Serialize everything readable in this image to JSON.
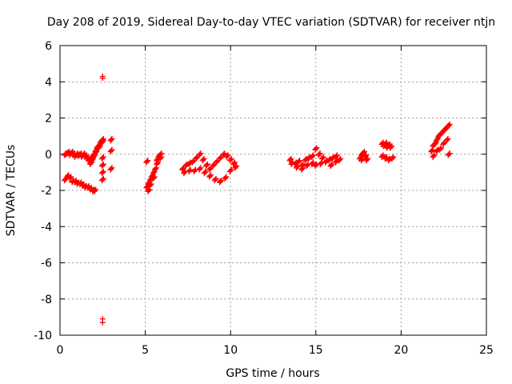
{
  "chart_data": {
    "type": "scatter",
    "title": "Day 208 of 2019, Sidereal Day-to-day VTEC variation (SDTVAR) for receiver ntjn",
    "xlabel": "GPS time / hours",
    "ylabel": "SDTVAR / TECUs",
    "xlim": [
      0,
      25
    ],
    "ylim": [
      -10,
      6
    ],
    "xticks": [
      0,
      5,
      10,
      15,
      20,
      25
    ],
    "yticks": [
      -10,
      -8,
      -6,
      -4,
      -2,
      0,
      2,
      4,
      6
    ],
    "grid": true,
    "marker": "+",
    "color": "#ff0000",
    "series": [
      {
        "name": "ntjn",
        "x": [
          0.3,
          0.4,
          0.5,
          0.6,
          0.7,
          0.8,
          0.9,
          1.0,
          1.1,
          1.2,
          1.3,
          1.4,
          1.5,
          1.6,
          1.7,
          1.8,
          0.3,
          0.45,
          0.6,
          0.75,
          0.9,
          1.05,
          1.2,
          1.35,
          1.5,
          1.65,
          1.8,
          1.95,
          2.05,
          1.8,
          1.9,
          2.0,
          2.1,
          2.2,
          2.3,
          2.4,
          2.5,
          1.8,
          1.9,
          2.0,
          2.1,
          2.2,
          2.3,
          2.4,
          2.5,
          2.5,
          2.5,
          2.5,
          2.5,
          3.0,
          3.0,
          3.0,
          5.1,
          5.1,
          5.2,
          5.3,
          5.4,
          5.5,
          5.6,
          5.7,
          5.8,
          5.9,
          5.2,
          5.3,
          5.5,
          5.7,
          5.9,
          7.2,
          7.4,
          7.6,
          7.8,
          8.0,
          8.2,
          8.4,
          8.6,
          8.8,
          9.0,
          9.2,
          9.4,
          9.6,
          9.8,
          10.0,
          10.2,
          7.3,
          7.6,
          7.9,
          8.2,
          8.5,
          8.8,
          9.1,
          9.4,
          9.7,
          10.0,
          10.3,
          13.5,
          13.8,
          14.0,
          14.2,
          14.4,
          14.6,
          14.8,
          15.0,
          15.2,
          15.4,
          15.6,
          15.8,
          16.0,
          16.2,
          16.4,
          13.6,
          13.9,
          14.2,
          14.5,
          14.8,
          15.0,
          15.3,
          15.6,
          15.9,
          16.2,
          17.6,
          17.7,
          17.8,
          17.9,
          18.0,
          17.7,
          17.9,
          18.9,
          19.0,
          19.1,
          19.2,
          19.3,
          19.4,
          18.9,
          19.1,
          19.3,
          19.5,
          21.8,
          21.9,
          22.0,
          22.1,
          22.2,
          22.3,
          22.4,
          22.5,
          22.6,
          22.7,
          22.8,
          21.9,
          22.1,
          22.3,
          22.5,
          22.7,
          22.8
        ],
        "y": [
          0.0,
          0.05,
          0.1,
          0.0,
          0.1,
          0.0,
          -0.1,
          0.0,
          -0.05,
          0.0,
          -0.1,
          0.0,
          -0.1,
          -0.2,
          -0.3,
          -0.2,
          -1.4,
          -1.2,
          -1.3,
          -1.5,
          -1.5,
          -1.6,
          -1.6,
          -1.7,
          -1.8,
          -1.8,
          -1.9,
          -2.0,
          -2.0,
          -0.4,
          -0.2,
          0.0,
          0.2,
          0.4,
          0.5,
          0.7,
          0.8,
          -0.5,
          -0.3,
          -0.1,
          0.1,
          0.3,
          0.4,
          0.6,
          0.7,
          -0.2,
          -0.6,
          -1.0,
          -1.4,
          0.8,
          0.2,
          -0.8,
          -0.4,
          -1.8,
          -1.6,
          -1.4,
          -1.2,
          -1.0,
          -0.8,
          -0.3,
          -0.1,
          0.0,
          -2.0,
          -1.7,
          -1.3,
          -0.5,
          -0.2,
          -0.8,
          -0.6,
          -0.5,
          -0.4,
          -0.2,
          0.0,
          -0.3,
          -0.6,
          -0.8,
          -0.6,
          -0.4,
          -0.2,
          0.0,
          -0.1,
          -0.3,
          -0.5,
          -1.0,
          -0.9,
          -0.9,
          -0.8,
          -1.0,
          -1.2,
          -1.4,
          -1.5,
          -1.3,
          -0.9,
          -0.7,
          -0.3,
          -0.5,
          -0.4,
          -0.6,
          -0.3,
          -0.2,
          -0.1,
          0.3,
          0.0,
          -0.2,
          -0.4,
          -0.3,
          -0.2,
          -0.1,
          -0.3,
          -0.5,
          -0.7,
          -0.8,
          -0.6,
          -0.5,
          -0.6,
          -0.5,
          -0.4,
          -0.6,
          -0.4,
          -0.2,
          0.0,
          0.1,
          -0.1,
          -0.3,
          -0.3,
          -0.1,
          0.6,
          0.5,
          0.6,
          0.4,
          0.5,
          0.4,
          -0.1,
          -0.2,
          -0.3,
          -0.2,
          0.2,
          0.5,
          0.6,
          0.8,
          1.0,
          1.1,
          1.2,
          1.3,
          1.4,
          1.5,
          1.6,
          -0.1,
          0.2,
          0.3,
          0.6,
          0.8,
          0.0
        ]
      }
    ],
    "outliers": {
      "x": [
        2.5,
        2.5,
        2.5,
        2.5
      ],
      "y": [
        4.3,
        4.2,
        -9.1,
        -9.3
      ]
    }
  }
}
